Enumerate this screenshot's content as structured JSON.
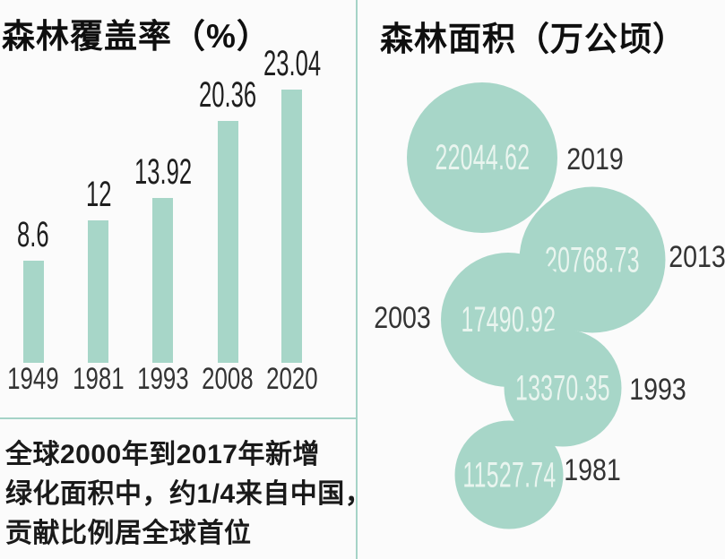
{
  "colors": {
    "accent": "#a7d6c8",
    "divider": "#a5d3c7",
    "bubble_text": "#e9f5ef",
    "text_dark": "#1e1e1e",
    "text_gray": "#333333",
    "background": "#fbfbfb"
  },
  "annotation": {
    "lines": [
      "全球2000年到2017年新增",
      "绿化面积中，约1/4来自中国，",
      "贡献比例居全球首位"
    ]
  },
  "chart_data": [
    {
      "type": "bar",
      "title": "森林覆盖率（%）",
      "unit": "%",
      "categories": [
        "1949",
        "1981",
        "1993",
        "2008",
        "2020"
      ],
      "values": [
        8.6,
        12,
        13.92,
        20.36,
        23.04
      ],
      "ylim": [
        0,
        25
      ],
      "grid": false,
      "value_labels": true,
      "bar_color": "#a7d6c8"
    },
    {
      "type": "bubble",
      "title": "森林面积（万公顷）",
      "unit": "万公顷",
      "categories": [
        "2019",
        "2013",
        "2003",
        "1993",
        "1981"
      ],
      "values": [
        22044.62,
        20768.73,
        17490.92,
        13370.35,
        11527.74
      ],
      "bubble_color": "#a7d6c8",
      "label_side": [
        "right",
        "right",
        "left",
        "right",
        "right"
      ],
      "grid": false
    }
  ]
}
